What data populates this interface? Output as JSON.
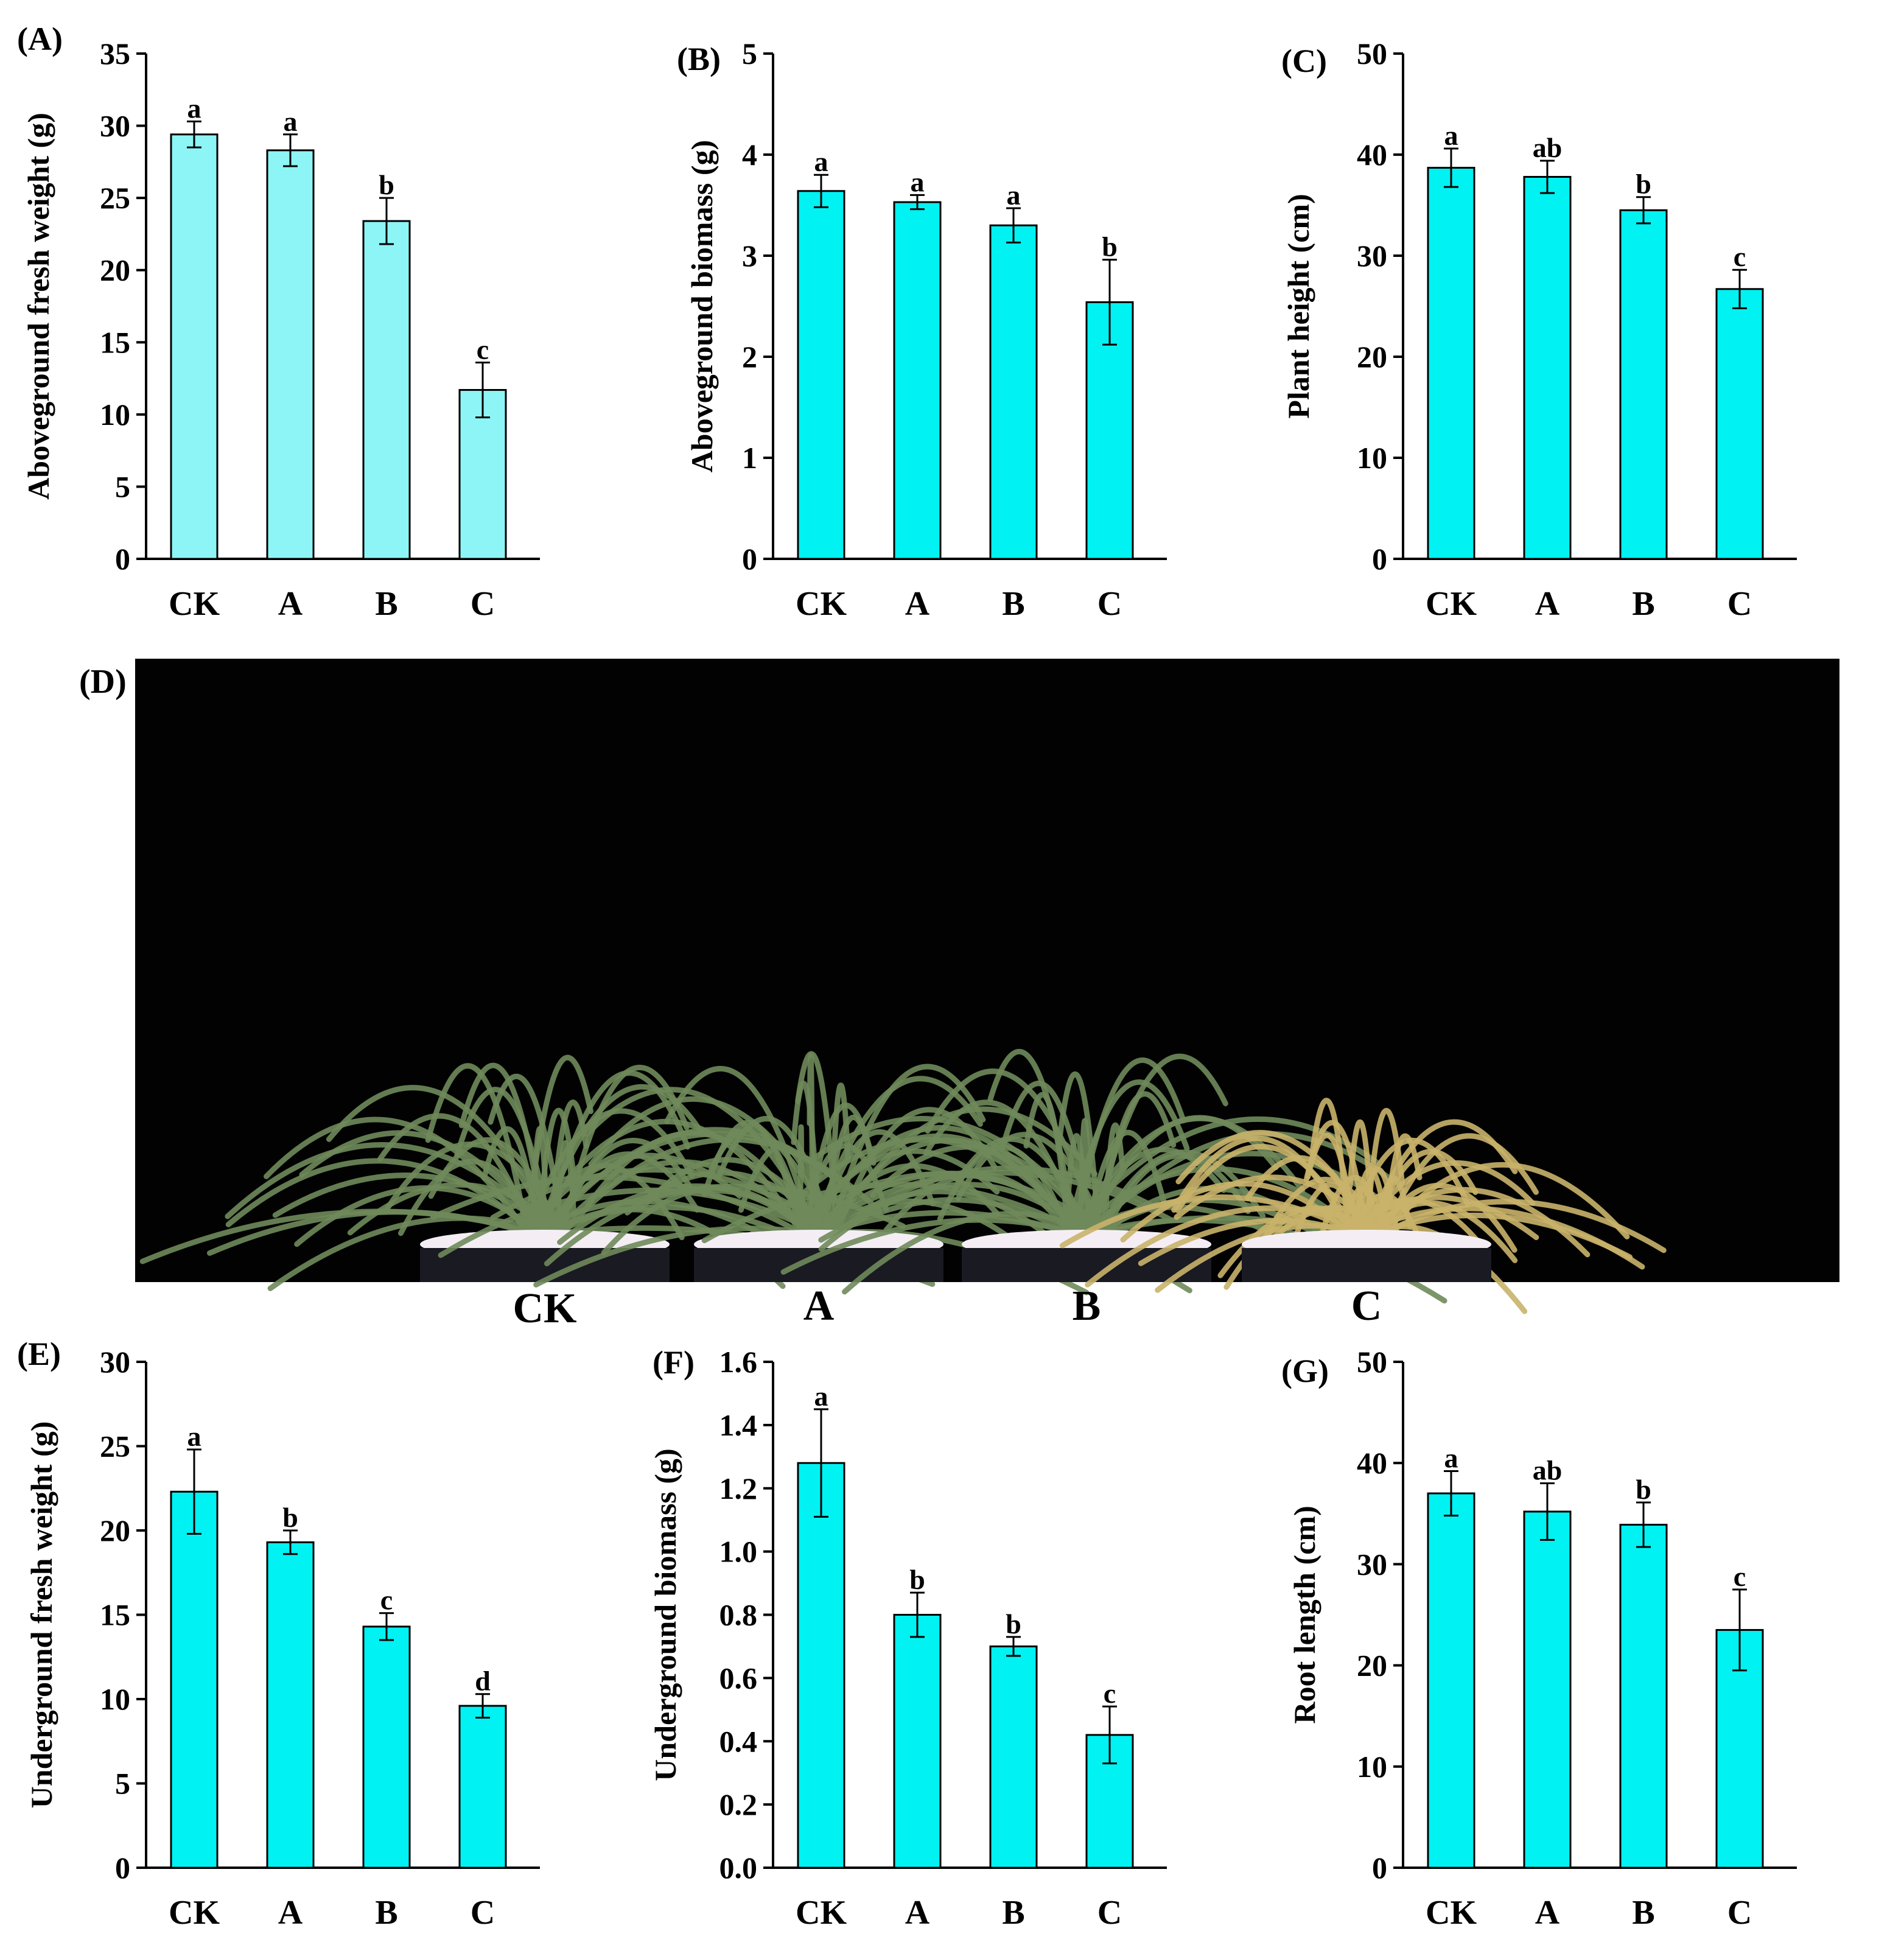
{
  "figure": {
    "photo_panel_label": "(D)",
    "photo_labels": [
      "CK",
      "A",
      "B",
      "C"
    ]
  },
  "colors": {
    "bar_light": "#8df5f5",
    "bar": "#00f2f2",
    "axis": "#000000",
    "photo_bg": "#020202",
    "leaf_green": "#6f8a5a",
    "leaf_yellow": "#c9b36a",
    "pot_rim": "#f4eef4"
  },
  "chart_data": [
    {
      "panel": "(A)",
      "type": "bar",
      "categories": [
        "CK",
        "A",
        "B",
        "C"
      ],
      "values": [
        29.4,
        28.3,
        23.4,
        11.7
      ],
      "errors": [
        0.9,
        1.1,
        1.6,
        1.9
      ],
      "letters": [
        "a",
        "a",
        "b",
        "c"
      ],
      "ylabel": "Aboveground fresh weight (g)",
      "xlabel": "",
      "ylim": [
        0,
        35
      ],
      "ticks": [
        "0",
        "5",
        "10",
        "15",
        "20",
        "25",
        "30",
        "35"
      ],
      "color": "#8df5f5"
    },
    {
      "panel": "(B)",
      "type": "bar",
      "categories": [
        "CK",
        "A",
        "B",
        "C"
      ],
      "values": [
        3.64,
        3.53,
        3.3,
        2.54
      ],
      "errors": [
        0.16,
        0.07,
        0.17,
        0.42
      ],
      "letters": [
        "a",
        "a",
        "a",
        "b"
      ],
      "ylabel": "Aboveground biomass (g)",
      "xlabel": "",
      "ylim": [
        0,
        5
      ],
      "ticks": [
        "0",
        "1",
        "2",
        "3",
        "4",
        "5"
      ],
      "color": "#00f2f2"
    },
    {
      "panel": "(C)",
      "type": "bar",
      "categories": [
        "CK",
        "A",
        "B",
        "C"
      ],
      "values": [
        38.7,
        37.8,
        34.5,
        26.7
      ],
      "errors": [
        1.9,
        1.6,
        1.3,
        1.9
      ],
      "letters": [
        "a",
        "ab",
        "b",
        "c"
      ],
      "ylabel": "Plant height (cm)",
      "xlabel": "",
      "ylim": [
        0,
        50
      ],
      "ticks": [
        "0",
        "10",
        "20",
        "30",
        "40",
        "50"
      ],
      "color": "#00f2f2"
    },
    {
      "panel": "(E)",
      "type": "bar",
      "categories": [
        "CK",
        "A",
        "B",
        "C"
      ],
      "values": [
        22.3,
        19.3,
        14.3,
        9.6
      ],
      "errors": [
        2.5,
        0.7,
        0.8,
        0.7
      ],
      "letters": [
        "a",
        "b",
        "c",
        "d"
      ],
      "ylabel": "Underground fresh weight (g)",
      "xlabel": "",
      "ylim": [
        0,
        30
      ],
      "ticks": [
        "0",
        "5",
        "10",
        "15",
        "20",
        "25",
        "30"
      ],
      "color": "#00f2f2"
    },
    {
      "panel": "(F)",
      "type": "bar",
      "categories": [
        "CK",
        "A",
        "B",
        "C"
      ],
      "values": [
        1.28,
        0.8,
        0.7,
        0.42
      ],
      "errors": [
        0.17,
        0.07,
        0.03,
        0.09
      ],
      "letters": [
        "a",
        "b",
        "b",
        "c"
      ],
      "ylabel": "Underground biomass (g)",
      "xlabel": "",
      "ylim": [
        0,
        1.6
      ],
      "ticks": [
        "0.0",
        "0.2",
        "0.4",
        "0.6",
        "0.8",
        "1.0",
        "1.2",
        "1.4",
        "1.6"
      ],
      "color": "#00f2f2"
    },
    {
      "panel": "(G)",
      "type": "bar",
      "categories": [
        "CK",
        "A",
        "B",
        "C"
      ],
      "values": [
        37,
        35.2,
        33.9,
        23.5
      ],
      "errors": [
        2.2,
        2.8,
        2.2,
        4.0
      ],
      "letters": [
        "a",
        "ab",
        "b",
        "c"
      ],
      "ylabel": "Root length (cm)",
      "xlabel": "",
      "ylim": [
        0,
        50
      ],
      "ticks": [
        "0",
        "10",
        "20",
        "30",
        "40",
        "50"
      ],
      "color": "#00f2f2"
    }
  ]
}
